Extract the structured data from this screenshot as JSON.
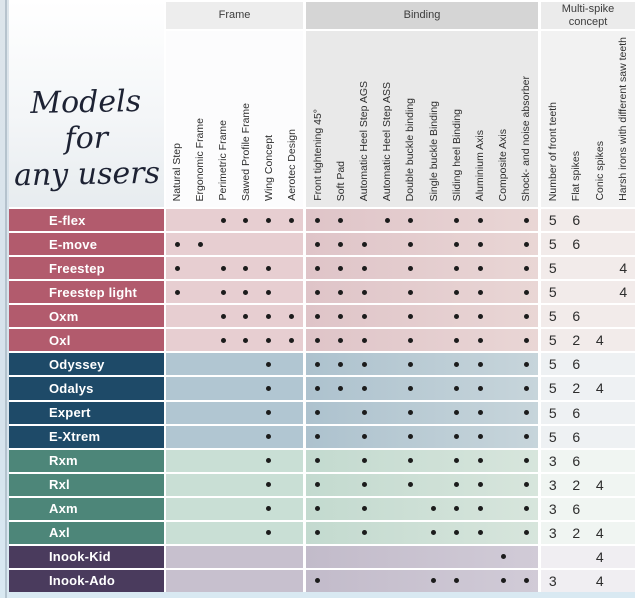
{
  "title": {
    "line1": "Models for",
    "line2": "any users"
  },
  "groups": [
    {
      "id": "frame",
      "label": "Frame",
      "columns": [
        "Natural Step",
        "Ergonomic Frame",
        "Perimetric Frame",
        "Sawed Profile Frame",
        "Wing Concept",
        "Aerotec Design"
      ]
    },
    {
      "id": "binding",
      "label": "Binding",
      "columns": [
        "Front tightening 45°",
        "Soft Pad",
        "Automatic Heel Step AGS",
        "Automatic Heel Step ASS",
        "Double buckle binding",
        "Single buckle Binding",
        "Sliding heel Binding",
        "Aluminium Axis",
        "Composite Axis",
        "Shock- and noise absorber"
      ]
    },
    {
      "id": "multi",
      "label": "Multi-spike concept",
      "label_lines": [
        "Multi-spike",
        "concept"
      ],
      "columns": [
        "Number of front teeth",
        "Flat spikes",
        "Conic spikes",
        "Harsh irons with different saw teeth"
      ]
    }
  ],
  "palette": {
    "rose": {
      "label": "#b25b6d",
      "frame": "#e7ced1",
      "binding_from": "#dfc4c8",
      "binding_to": "#e9d6d5",
      "multi": "#f2ebea"
    },
    "navy": {
      "label": "#1e4a68",
      "frame": "#b1c6d2",
      "binding_from": "#adc2ce",
      "binding_to": "#c7d5db",
      "multi": "#eef1f3"
    },
    "teal": {
      "label": "#4d8679",
      "frame": "#c9dfd5",
      "binding_from": "#c3dacf",
      "binding_to": "#d7e5dc",
      "multi": "#f0f5f2"
    },
    "plum": {
      "label": "#4a3b5d",
      "frame": "#c7c0ce",
      "binding_from": "#c2bbca",
      "binding_to": "#d1cbd7",
      "multi": "#f0eef2"
    }
  },
  "rows": [
    {
      "model": "E-flex",
      "group": "rose",
      "frame": [
        0,
        0,
        1,
        1,
        1,
        1
      ],
      "binding": [
        1,
        1,
        0,
        1,
        1,
        0,
        1,
        1,
        0,
        1
      ],
      "multi": [
        "5",
        "6",
        "",
        ""
      ]
    },
    {
      "model": "E-move",
      "group": "rose",
      "frame": [
        1,
        1,
        0,
        0,
        0,
        0
      ],
      "binding": [
        1,
        1,
        1,
        0,
        1,
        0,
        1,
        1,
        0,
        1
      ],
      "multi": [
        "5",
        "6",
        "",
        ""
      ]
    },
    {
      "model": "Freestep",
      "group": "rose",
      "frame": [
        1,
        0,
        1,
        1,
        1,
        0
      ],
      "binding": [
        1,
        1,
        1,
        0,
        1,
        0,
        1,
        1,
        0,
        1
      ],
      "multi": [
        "5",
        "",
        "",
        "4"
      ]
    },
    {
      "model": "Freestep light",
      "group": "rose",
      "frame": [
        1,
        0,
        1,
        1,
        1,
        0
      ],
      "binding": [
        1,
        1,
        1,
        0,
        1,
        0,
        1,
        1,
        0,
        1
      ],
      "multi": [
        "5",
        "",
        "",
        "4"
      ]
    },
    {
      "model": "Oxm",
      "group": "rose",
      "frame": [
        0,
        0,
        1,
        1,
        1,
        1
      ],
      "binding": [
        1,
        1,
        1,
        0,
        1,
        0,
        1,
        1,
        0,
        1
      ],
      "multi": [
        "5",
        "6",
        "",
        ""
      ]
    },
    {
      "model": "Oxl",
      "group": "rose",
      "frame": [
        0,
        0,
        1,
        1,
        1,
        1
      ],
      "binding": [
        1,
        1,
        1,
        0,
        1,
        0,
        1,
        1,
        0,
        1
      ],
      "multi": [
        "5",
        "2",
        "4",
        ""
      ]
    },
    {
      "model": "Odyssey",
      "group": "navy",
      "frame": [
        0,
        0,
        0,
        0,
        1,
        0
      ],
      "binding": [
        1,
        1,
        1,
        0,
        1,
        0,
        1,
        1,
        0,
        1
      ],
      "multi": [
        "5",
        "6",
        "",
        ""
      ]
    },
    {
      "model": "Odalys",
      "group": "navy",
      "frame": [
        0,
        0,
        0,
        0,
        1,
        0
      ],
      "binding": [
        1,
        1,
        1,
        0,
        1,
        0,
        1,
        1,
        0,
        1
      ],
      "multi": [
        "5",
        "2",
        "4",
        ""
      ]
    },
    {
      "model": "Expert",
      "group": "navy",
      "frame": [
        0,
        0,
        0,
        0,
        1,
        0
      ],
      "binding": [
        1,
        0,
        1,
        0,
        1,
        0,
        1,
        1,
        0,
        1
      ],
      "multi": [
        "5",
        "6",
        "",
        ""
      ]
    },
    {
      "model": "E-Xtrem",
      "group": "navy",
      "frame": [
        0,
        0,
        0,
        0,
        1,
        0
      ],
      "binding": [
        1,
        0,
        1,
        0,
        1,
        0,
        1,
        1,
        0,
        1
      ],
      "multi": [
        "5",
        "6",
        "",
        ""
      ]
    },
    {
      "model": "Rxm",
      "group": "teal",
      "frame": [
        0,
        0,
        0,
        0,
        1,
        0
      ],
      "binding": [
        1,
        0,
        1,
        0,
        1,
        0,
        1,
        1,
        0,
        1
      ],
      "multi": [
        "3",
        "6",
        "",
        ""
      ]
    },
    {
      "model": "Rxl",
      "group": "teal",
      "frame": [
        0,
        0,
        0,
        0,
        1,
        0
      ],
      "binding": [
        1,
        0,
        1,
        0,
        1,
        0,
        1,
        1,
        0,
        1
      ],
      "multi": [
        "3",
        "2",
        "4",
        ""
      ]
    },
    {
      "model": "Axm",
      "group": "teal",
      "frame": [
        0,
        0,
        0,
        0,
        1,
        0
      ],
      "binding": [
        1,
        0,
        1,
        0,
        0,
        1,
        1,
        1,
        0,
        1
      ],
      "multi": [
        "3",
        "6",
        "",
        ""
      ]
    },
    {
      "model": "Axl",
      "group": "teal",
      "frame": [
        0,
        0,
        0,
        0,
        1,
        0
      ],
      "binding": [
        1,
        0,
        1,
        0,
        0,
        1,
        1,
        1,
        0,
        1
      ],
      "multi": [
        "3",
        "2",
        "4",
        ""
      ]
    },
    {
      "model": "Inook-Kid",
      "group": "plum",
      "frame": [
        0,
        0,
        0,
        0,
        0,
        0
      ],
      "binding": [
        0,
        0,
        0,
        0,
        0,
        0,
        0,
        0,
        1,
        0
      ],
      "multi": [
        "",
        "",
        "4",
        ""
      ]
    },
    {
      "model": "Inook-Ado",
      "group": "plum",
      "frame": [
        0,
        0,
        0,
        0,
        0,
        0
      ],
      "binding": [
        1,
        0,
        0,
        0,
        0,
        1,
        1,
        0,
        1,
        1
      ],
      "multi": [
        "3",
        "",
        "4",
        ""
      ]
    }
  ]
}
